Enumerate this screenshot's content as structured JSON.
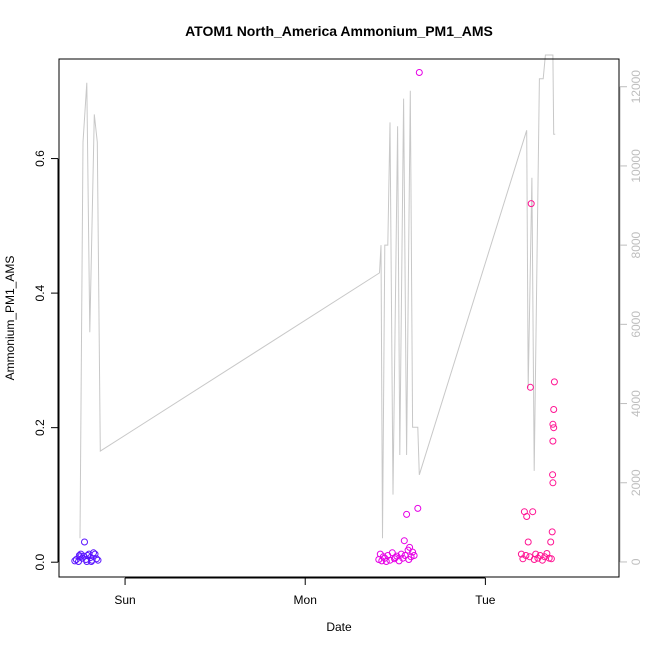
{
  "chart_data": {
    "type": "scatter",
    "title": "ATOM1 North_America Ammonium_PM1_AMS",
    "xlabel": "Date",
    "ylabel": "Ammonium_PM1_AMS",
    "x_ticks": [
      {
        "label": "Sun",
        "hours": 24
      },
      {
        "label": "Mon",
        "hours": 48
      },
      {
        "label": "Tue",
        "hours": 72
      }
    ],
    "xlim_hours": [
      15.2,
      89.8
    ],
    "ylim": [
      -0.022,
      0.748
    ],
    "y_ticks": [
      0.0,
      0.2,
      0.4,
      0.6
    ],
    "right_axis": {
      "label": "",
      "ylim": [
        -380,
        12700
      ],
      "ticks": [
        0,
        2000,
        4000,
        6000,
        8000,
        10000,
        12000
      ],
      "color": "#bebebe"
    },
    "altitude_line": {
      "color": "#c8c8c8",
      "points": [
        [
          18.0,
          600
        ],
        [
          18.4,
          10600
        ],
        [
          18.9,
          12100
        ],
        [
          19.3,
          5800
        ],
        [
          19.9,
          11300
        ],
        [
          20.3,
          10600
        ],
        [
          20.7,
          2800
        ],
        [
          57.9,
          7300
        ],
        [
          58.1,
          8000
        ],
        [
          58.3,
          600
        ],
        [
          58.6,
          8000
        ],
        [
          59.0,
          8000
        ],
        [
          59.3,
          11100
        ],
        [
          59.7,
          1700
        ],
        [
          60.3,
          11000
        ],
        [
          60.6,
          2700
        ],
        [
          61.1,
          11700
        ],
        [
          61.5,
          2700
        ],
        [
          62.0,
          11900
        ],
        [
          62.3,
          3400
        ],
        [
          63.0,
          3400
        ],
        [
          63.2,
          2200
        ],
        [
          77.5,
          10900
        ],
        [
          77.7,
          4400
        ],
        [
          78.2,
          9700
        ],
        [
          78.5,
          2300
        ],
        [
          79.2,
          12200
        ],
        [
          79.7,
          12200
        ],
        [
          80.0,
          12800
        ],
        [
          81.0,
          12800
        ],
        [
          81.1,
          10800
        ],
        [
          81.3,
          10800
        ]
      ]
    },
    "series": [
      {
        "color": "#5a14ff",
        "points": [
          [
            17.3,
            0.002
          ],
          [
            17.5,
            0.004
          ],
          [
            17.8,
            0.001
          ],
          [
            18.0,
            0.008
          ],
          [
            18.1,
            0.012
          ],
          [
            18.3,
            0.006
          ],
          [
            18.5,
            0.009
          ],
          [
            18.6,
            0.03
          ],
          [
            18.8,
            0.004
          ],
          [
            19.0,
            0.01
          ],
          [
            19.2,
            0.012
          ],
          [
            19.4,
            0.007
          ],
          [
            19.6,
            0.003
          ],
          [
            19.8,
            0.014
          ],
          [
            20.0,
            0.012
          ],
          [
            20.2,
            0.005
          ],
          [
            20.4,
            0.003
          ],
          [
            18.9,
            0.001
          ],
          [
            19.5,
            0.001
          ],
          [
            17.9,
            0.01
          ]
        ]
      },
      {
        "color": "#e600e6",
        "points": [
          [
            57.8,
            0.004
          ],
          [
            58.0,
            0.012
          ],
          [
            58.2,
            0.002
          ],
          [
            58.4,
            0.008
          ],
          [
            58.6,
            0.006
          ],
          [
            58.8,
            0.001
          ],
          [
            59.0,
            0.01
          ],
          [
            59.3,
            0.003
          ],
          [
            59.6,
            0.014
          ],
          [
            59.9,
            0.005
          ],
          [
            60.2,
            0.009
          ],
          [
            60.5,
            0.002
          ],
          [
            60.8,
            0.012
          ],
          [
            61.0,
            0.006
          ],
          [
            61.2,
            0.032
          ],
          [
            61.3,
            0.01
          ],
          [
            61.5,
            0.071
          ],
          [
            61.7,
            0.018
          ],
          [
            61.9,
            0.022
          ],
          [
            62.1,
            0.008
          ],
          [
            62.3,
            0.015
          ],
          [
            62.5,
            0.01
          ],
          [
            63.0,
            0.08
          ],
          [
            63.2,
            0.728
          ],
          [
            60.0,
            0.007
          ],
          [
            61.8,
            0.004
          ]
        ]
      },
      {
        "color": "#ff1493",
        "points": [
          [
            76.8,
            0.012
          ],
          [
            77.0,
            0.005
          ],
          [
            77.2,
            0.075
          ],
          [
            77.4,
            0.01
          ],
          [
            77.5,
            0.068
          ],
          [
            77.7,
            0.03
          ],
          [
            77.9,
            0.008
          ],
          [
            78.0,
            0.26
          ],
          [
            78.1,
            0.533
          ],
          [
            78.3,
            0.075
          ],
          [
            78.5,
            0.004
          ],
          [
            78.7,
            0.012
          ],
          [
            79.0,
            0.006
          ],
          [
            79.3,
            0.01
          ],
          [
            79.6,
            0.003
          ],
          [
            79.9,
            0.008
          ],
          [
            80.2,
            0.013
          ],
          [
            80.5,
            0.006
          ],
          [
            80.7,
            0.03
          ],
          [
            80.9,
            0.045
          ],
          [
            81.0,
            0.205
          ],
          [
            81.1,
            0.2
          ],
          [
            81.0,
            0.18
          ],
          [
            80.95,
            0.13
          ],
          [
            81.0,
            0.118
          ],
          [
            81.1,
            0.227
          ],
          [
            81.2,
            0.268
          ],
          [
            80.8,
            0.005
          ]
        ]
      }
    ]
  }
}
